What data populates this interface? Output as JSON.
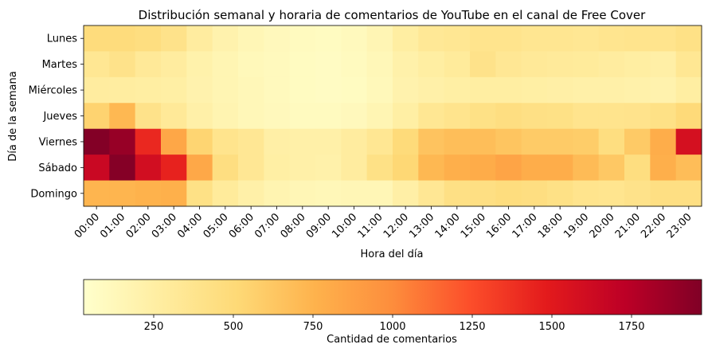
{
  "chart_data": {
    "type": "heatmap",
    "title": "Distribución semanal y horaria de comentarios de YouTube en el canal de Free Cover",
    "xlabel": "Hora del día",
    "ylabel": "Día de la semana",
    "x_categories": [
      "00:00",
      "01:00",
      "02:00",
      "03:00",
      "04:00",
      "05:00",
      "06:00",
      "07:00",
      "08:00",
      "09:00",
      "10:00",
      "11:00",
      "12:00",
      "13:00",
      "14:00",
      "15:00",
      "16:00",
      "17:00",
      "18:00",
      "19:00",
      "20:00",
      "21:00",
      "22:00",
      "23:00"
    ],
    "y_categories": [
      "Lunes",
      "Martes",
      "Miércoles",
      "Jueves",
      "Viernes",
      "Sábado",
      "Domingo"
    ],
    "values": [
      [
        480,
        480,
        460,
        400,
        280,
        200,
        150,
        120,
        100,
        90,
        110,
        160,
        260,
        330,
        350,
        380,
        380,
        360,
        360,
        350,
        370,
        380,
        380,
        420
      ],
      [
        350,
        400,
        320,
        280,
        210,
        170,
        130,
        110,
        90,
        80,
        100,
        140,
        220,
        260,
        300,
        400,
        340,
        320,
        310,
        300,
        280,
        260,
        240,
        350
      ],
      [
        280,
        270,
        260,
        250,
        200,
        170,
        140,
        110,
        90,
        80,
        90,
        130,
        200,
        230,
        250,
        260,
        260,
        250,
        240,
        230,
        230,
        220,
        200,
        260
      ],
      [
        550,
        720,
        400,
        320,
        230,
        180,
        140,
        120,
        100,
        100,
        120,
        170,
        250,
        350,
        380,
        420,
        450,
        430,
        420,
        380,
        380,
        390,
        420,
        500
      ],
      [
        1960,
        1880,
        1420,
        830,
        540,
        380,
        340,
        240,
        230,
        230,
        280,
        350,
        490,
        650,
        680,
        680,
        640,
        600,
        600,
        590,
        460,
        610,
        790,
        1580
      ],
      [
        1650,
        1950,
        1600,
        1450,
        820,
        450,
        340,
        250,
        230,
        220,
        280,
        420,
        520,
        720,
        780,
        800,
        850,
        790,
        790,
        700,
        620,
        460,
        780,
        690
      ],
      [
        740,
        740,
        760,
        770,
        420,
        300,
        230,
        180,
        150,
        140,
        150,
        150,
        240,
        340,
        430,
        440,
        470,
        450,
        420,
        380,
        370,
        400,
        440,
        440
      ]
    ],
    "colorbar": {
      "label": "Cantidad de comentarios",
      "min": 30,
      "max": 1970,
      "ticks": [
        "250",
        "500",
        "750",
        "1000",
        "1250",
        "1500",
        "1750"
      ],
      "tick_values": [
        250,
        500,
        750,
        1000,
        1250,
        1500,
        1750
      ],
      "colormap": "YlOrRd",
      "orientation": "horizontal"
    }
  }
}
